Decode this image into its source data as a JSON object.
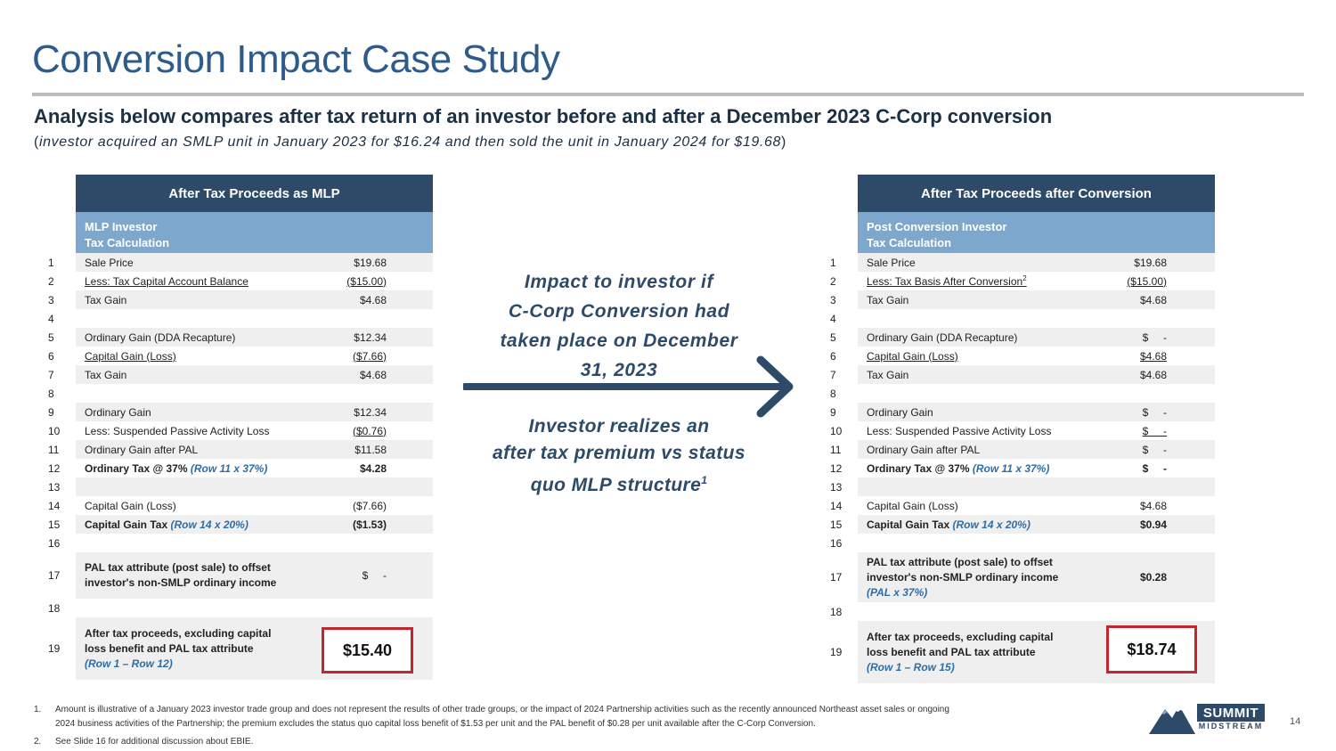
{
  "title": "Conversion Impact Case Study",
  "subtitle": "Analysis below compares after tax return of an investor before and after a December 2023 C-Corp conversion",
  "subnote_open": "(",
  "subnote_text": "investor acquired an SMLP unit in January 2023 for $16.24 and then sold the unit in January 2024 for $19.68",
  "subnote_close": ")",
  "left_table": {
    "header": "After Tax Proceeds as MLP",
    "sub_line1": "MLP Investor",
    "sub_line2": "Tax Calculation",
    "rows": [
      {
        "num": "1",
        "label": "Sale Price",
        "value": "$19.68"
      },
      {
        "num": "2",
        "label": "Less: Tax Capital Account Balance",
        "value": "($15.00)"
      },
      {
        "num": "3",
        "label": "Tax Gain",
        "value": "$4.68"
      },
      {
        "num": "4",
        "label": "",
        "value": ""
      },
      {
        "num": "5",
        "label": "Ordinary Gain (DDA Recapture)",
        "value": "$12.34"
      },
      {
        "num": "6",
        "label": "Capital Gain (Loss)",
        "value": "($7.66)"
      },
      {
        "num": "7",
        "label": "Tax Gain",
        "value": "$4.68"
      },
      {
        "num": "8",
        "label": "",
        "value": ""
      },
      {
        "num": "9",
        "label": "Ordinary Gain",
        "value": "$12.34"
      },
      {
        "num": "10",
        "label": "Less: Suspended Passive Activity Loss",
        "value": "($0.76)"
      },
      {
        "num": "11",
        "label": "Ordinary Gain after PAL",
        "value": "$11.58"
      },
      {
        "num": "12",
        "label": "Ordinary Tax @ 37%",
        "label_note": "(Row 11 x 37%)",
        "value": "$4.28"
      },
      {
        "num": "13",
        "label": "",
        "value": ""
      },
      {
        "num": "14",
        "label": "Capital Gain (Loss)",
        "value": "($7.66)"
      },
      {
        "num": "15",
        "label": "Capital Gain Tax",
        "label_note": "(Row 14 x 20%)",
        "value": "($1.53)"
      },
      {
        "num": "16",
        "label": "",
        "value": ""
      },
      {
        "num": "17",
        "label_line1": "PAL tax attribute (post sale) to offset",
        "label_line2": "investor's non-SMLP ordinary income",
        "value": "$     -"
      },
      {
        "num": "18",
        "label": "",
        "value": ""
      },
      {
        "num": "19",
        "label_line1": "After tax proceeds, excluding capital",
        "label_line2": "loss benefit and PAL tax attribute",
        "label_note": "(Row 1 – Row 12)",
        "value": "$15.40"
      }
    ]
  },
  "right_table": {
    "header": "After Tax Proceeds after Conversion",
    "sub_line1": "Post Conversion Investor",
    "sub_line2": "Tax Calculation",
    "rows": [
      {
        "num": "1",
        "label": "Sale Price",
        "value": "$19.68"
      },
      {
        "num": "2",
        "label": "Less: Tax Basis After Conversion",
        "sup": "2",
        "value": "($15.00)"
      },
      {
        "num": "3",
        "label": "Tax Gain",
        "value": "$4.68"
      },
      {
        "num": "4",
        "label": "",
        "value": ""
      },
      {
        "num": "5",
        "label": "Ordinary Gain (DDA Recapture)",
        "value": "$     -"
      },
      {
        "num": "6",
        "label": "Capital Gain (Loss)",
        "value": "$4.68"
      },
      {
        "num": "7",
        "label": "Tax Gain",
        "value": "$4.68"
      },
      {
        "num": "8",
        "label": "",
        "value": ""
      },
      {
        "num": "9",
        "label": "Ordinary Gain",
        "value": "$     -"
      },
      {
        "num": "10",
        "label": "Less: Suspended Passive Activity Loss",
        "value": "$     -"
      },
      {
        "num": "11",
        "label": "Ordinary Gain after PAL",
        "value": "$     -"
      },
      {
        "num": "12",
        "label": "Ordinary Tax @ 37%",
        "label_note": "(Row 11 x 37%)",
        "value": "$     -"
      },
      {
        "num": "13",
        "label": "",
        "value": ""
      },
      {
        "num": "14",
        "label": "Capital Gain (Loss)",
        "value": "$4.68"
      },
      {
        "num": "15",
        "label": "Capital Gain Tax",
        "label_note": "(Row 14 x 20%)",
        "value": "$0.94"
      },
      {
        "num": "16",
        "label": "",
        "value": ""
      },
      {
        "num": "17",
        "label_line1": "PAL tax attribute (post sale) to offset",
        "label_line2": "investor's non-SMLP ordinary income",
        "label_note": "(PAL x 37%)",
        "value": "$0.28"
      },
      {
        "num": "18",
        "label": "",
        "value": ""
      },
      {
        "num": "19",
        "label_line1": "After tax proceeds, excluding capital",
        "label_line2": "loss benefit and PAL tax attribute",
        "label_note": "(Row 1 – Row 15)",
        "value": "$18.74"
      }
    ]
  },
  "impact_line1": "Impact to investor if",
  "impact_line2": "C-Corp Conversion had",
  "impact_line3": "taken place on December",
  "impact_line4": "31, 2023",
  "realize_line1": "Investor realizes an",
  "realize_line2": "after tax premium vs status",
  "realize_line3": "quo MLP structure",
  "realize_sup": "1",
  "footnotes": [
    {
      "num": "1.",
      "line1": "Amount is illustrative of a January 2023 investor trade group and does not represent the results of other trade groups, or the impact of 2024 Partnership activities such as the recently announced Northeast asset sales or ongoing",
      "line2": "2024 business activities of the Partnership; the premium excludes the status quo capital loss benefit of $1.53 per unit and the PAL benefit of $0.28 per unit available after the C-Corp Conversion."
    },
    {
      "num": "2.",
      "line1": "See Slide 16 for additional discussion about EBIE."
    }
  ],
  "page_number": "14",
  "logo": {
    "word": "SUMMIT",
    "sub": "MIDSTREAM"
  },
  "colors": {
    "title": "#2e5b8a",
    "header": "#2e4a69",
    "subheader": "#7da7cd",
    "highlight": "#c1272d",
    "note_blue": "#2e6ea6"
  }
}
